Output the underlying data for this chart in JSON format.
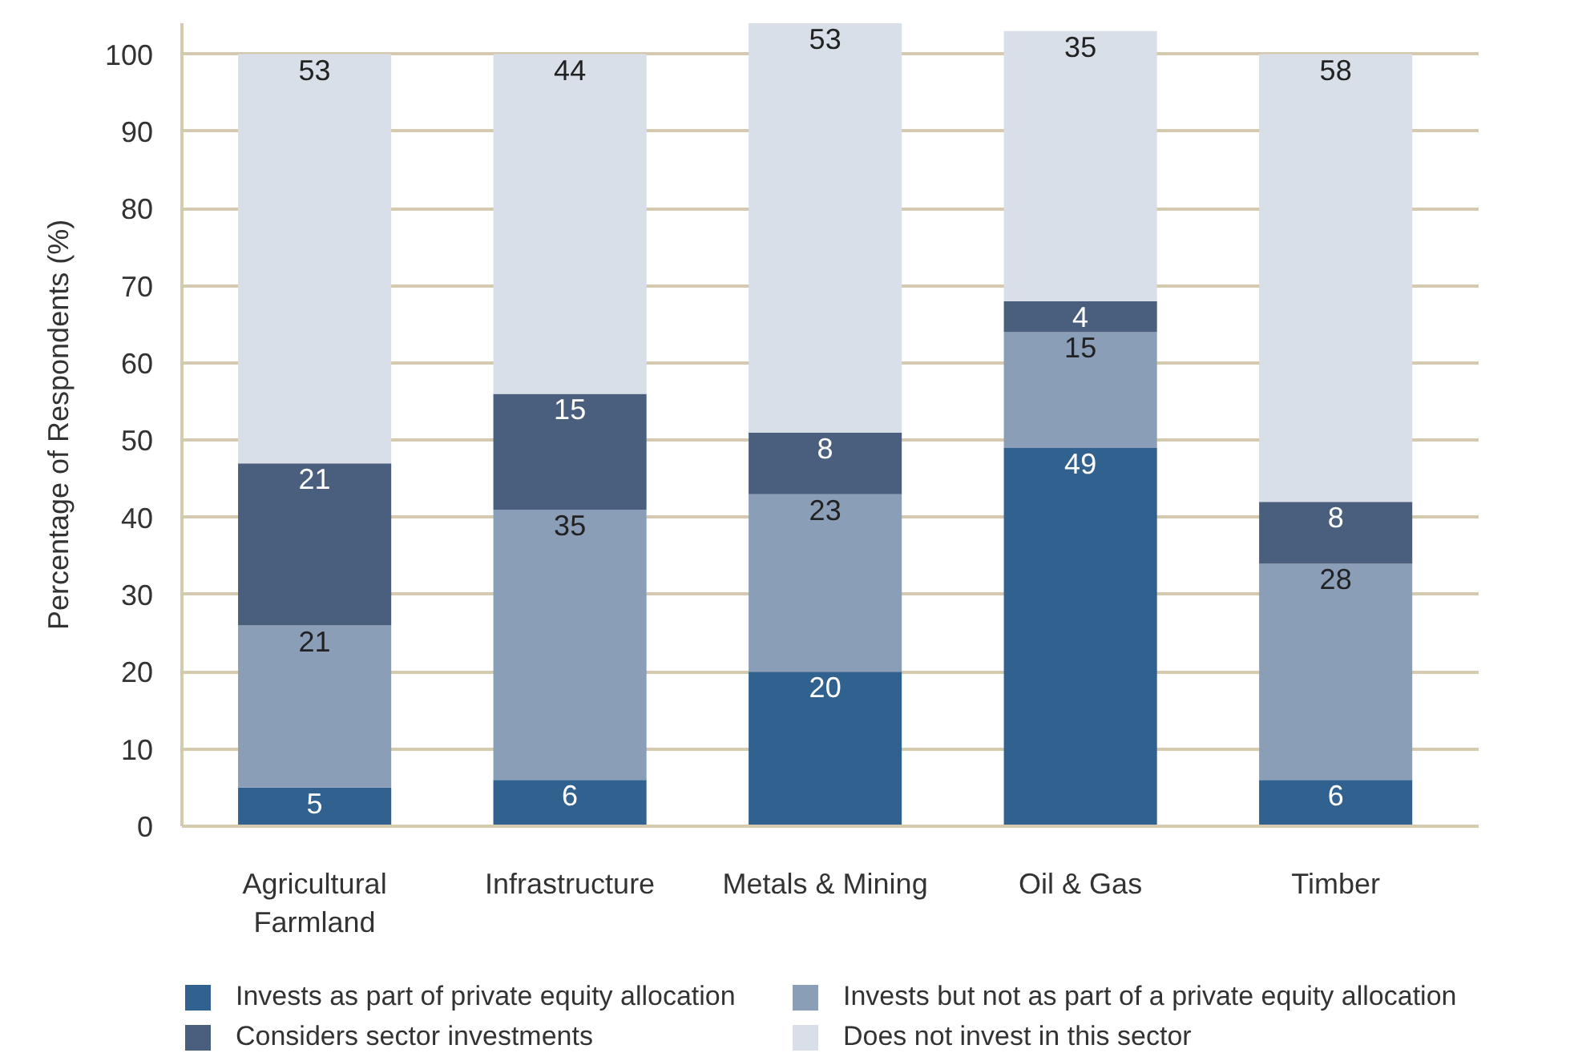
{
  "chart_data": {
    "type": "bar",
    "stacked": true,
    "ylabel": "Percentage of Respondents (%)",
    "categories": [
      "Agricultural Farmland",
      "Infrastructure",
      "Metals & Mining",
      "Oil & Gas",
      "Timber"
    ],
    "series": [
      {
        "name": "Invests as part of private equity allocation",
        "color": "#31618f",
        "values": [
          5,
          6,
          20,
          49,
          6
        ]
      },
      {
        "name": "Invests but not as part of a private equity allocation",
        "color": "#8a9eb8",
        "values": [
          21,
          35,
          23,
          15,
          28
        ]
      },
      {
        "name": "Considers sector investments",
        "color": "#4a5f7e",
        "values": [
          21,
          15,
          8,
          4,
          8
        ]
      },
      {
        "name": "Does not invest in this sector",
        "color": "#d8dfe9",
        "values": [
          53,
          44,
          53,
          35,
          58
        ]
      }
    ],
    "data_labels": true,
    "ylim": [
      0,
      104
    ],
    "yticks": [
      0,
      10,
      20,
      30,
      40,
      50,
      60,
      70,
      80,
      90,
      100
    ],
    "grid": "y",
    "legend": "bottom"
  }
}
